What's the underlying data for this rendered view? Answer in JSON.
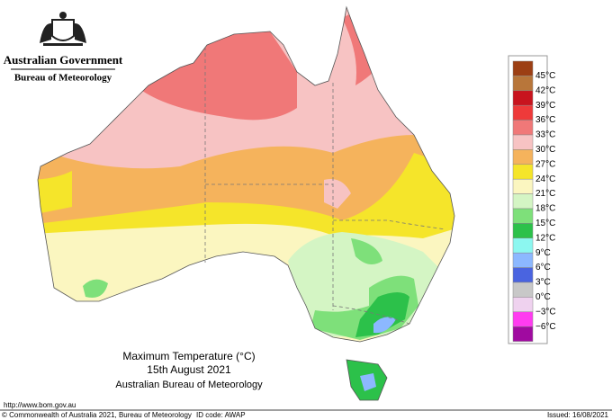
{
  "header": {
    "agency": "Australian Government",
    "bureau": "Bureau of Meteorology"
  },
  "title": {
    "line1": "Maximum Temperature (°C)",
    "line2": "15th August 2021",
    "line3": "Australian Bureau of Meteorology"
  },
  "legend": {
    "colors": [
      "#9c3f14",
      "#b8763a",
      "#c8141e",
      "#ee3a3a",
      "#f07878",
      "#f7c3c3",
      "#f5b35c",
      "#f5e52a",
      "#fbf6c0",
      "#d4f5c4",
      "#7ee07a",
      "#2cc14a",
      "#8cf7f0",
      "#8cb8ff",
      "#4a64e0",
      "#c8c8c8",
      "#efd2ef",
      "#ff3cf0",
      "#a00aa0"
    ],
    "labels": [
      "45°C",
      "42°C",
      "39°C",
      "36°C",
      "33°C",
      "30°C",
      "27°C",
      "24°C",
      "21°C",
      "18°C",
      "15°C",
      "12°C",
      "9°C",
      "6°C",
      "3°C",
      "0°C",
      "−3°C",
      "−6°C"
    ]
  },
  "footer": {
    "url": "http://www.bom.gov.au",
    "copyright": "© Commonwealth of Australia 2021, Bureau of Meteorology",
    "id_code": "ID code: AWAP",
    "issued": "Issued: 16/08/2021"
  }
}
